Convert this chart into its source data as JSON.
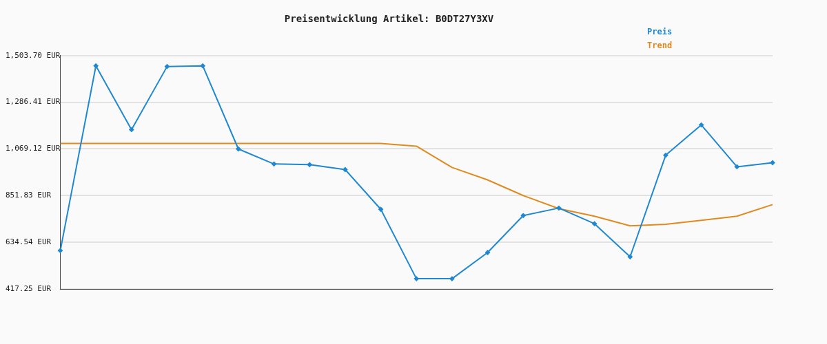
{
  "chart_data": {
    "type": "line",
    "title": "Preisentwicklung Artikel: B0DT27Y3XV",
    "categories": [
      null,
      null,
      null,
      null,
      null,
      null,
      null,
      null,
      null,
      null,
      null,
      null,
      null,
      null,
      null,
      null,
      null,
      null,
      null,
      null,
      null
    ],
    "series": [
      {
        "name": "Preis",
        "color": "#1f88d0",
        "marker": "diamond",
        "values": [
          596,
          1456,
          1159,
          1453,
          1456,
          1069,
          999,
          996,
          973,
          788,
          465,
          465,
          587,
          759,
          794,
          721,
          567,
          1040,
          1181,
          986,
          1005
        ]
      },
      {
        "name": "Trend",
        "color": "#e08a1e",
        "marker": "none",
        "values": [
          1095,
          1095,
          1095,
          1095,
          1095,
          1095,
          1095,
          1095,
          1095,
          1095,
          1082,
          983,
          925,
          852,
          791,
          756,
          711,
          718,
          737,
          756,
          810
        ]
      }
    ],
    "ylim": [
      417.25,
      1503.7
    ],
    "yticks": [
      {
        "value": 417.25,
        "label": "417.25 EUR"
      },
      {
        "value": 634.54,
        "label": "634.54 EUR"
      },
      {
        "value": 851.83,
        "label": "851.83 EUR"
      },
      {
        "value": 1069.12,
        "label": "1,069.12 EUR"
      },
      {
        "value": 1286.41,
        "label": "1,286.41 EUR"
      },
      {
        "value": 1503.7,
        "label": "1,503.70 EUR"
      }
    ],
    "grid": "y",
    "legend": "top right",
    "line_style": "solid"
  }
}
